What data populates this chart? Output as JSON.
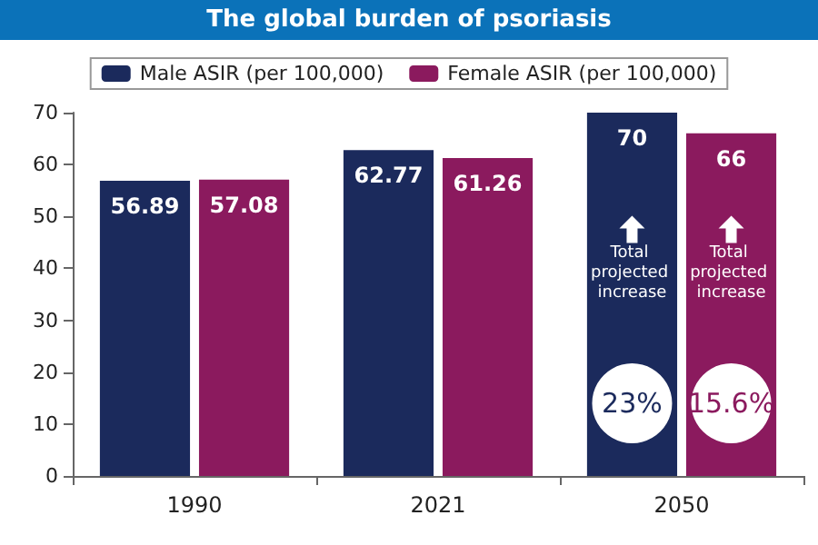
{
  "chart_data": {
    "type": "bar",
    "title": "The global burden of psoriasis",
    "categories": [
      "1990",
      "2021",
      "2050"
    ],
    "series": [
      {
        "name": "Male ASIR (per 100,000)",
        "color": "#1b2a5c",
        "values": [
          56.89,
          62.77,
          70
        ]
      },
      {
        "name": "Female ASIR (per 100,000)",
        "color": "#8b1a5e",
        "values": [
          57.08,
          61.26,
          66
        ]
      }
    ],
    "ylim": [
      0,
      70
    ],
    "yticks": [
      0,
      10,
      20,
      30,
      40,
      50,
      60,
      70
    ],
    "grid": false,
    "legend": "top",
    "data_labels": true,
    "annotations": [
      "Total projected increase",
      "23%",
      "Total projected increase",
      "15.6%"
    ]
  }
}
